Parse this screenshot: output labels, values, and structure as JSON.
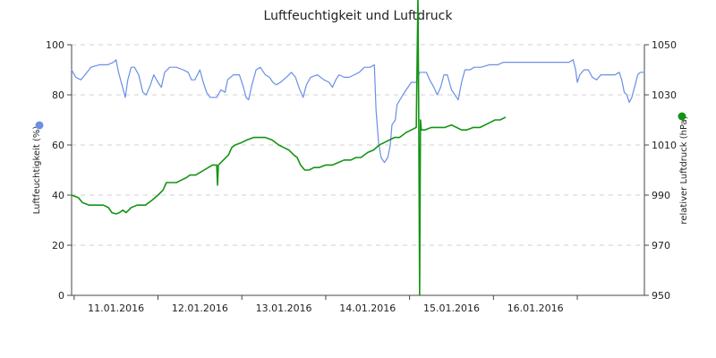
{
  "chart_data": {
    "type": "line",
    "title": "Luftfeuchtigkeit und Luftdruck",
    "y_left": {
      "label": "Luftfeuchtigkeit (%)",
      "ticks": [
        0,
        20,
        40,
        60,
        80,
        100
      ],
      "tick_labels": [
        "0",
        "20",
        "40",
        "60",
        "80",
        "100"
      ],
      "ylim": [
        0,
        100
      ],
      "legend_color": "#6a8fe6"
    },
    "y_right": {
      "label": "relativer Luftdruck (hPa)",
      "ticks": [
        950,
        970,
        990,
        1010,
        1030,
        1050
      ],
      "tick_labels": [
        "950",
        "970",
        "990",
        "1010",
        "1030",
        "1050"
      ],
      "ylim": [
        950,
        1050
      ],
      "legend_color": "#149414"
    },
    "x_axis": {
      "xlim": [
        10.47,
        17.3
      ],
      "day_ticks": [
        10.5,
        11.5,
        12.5,
        13.5,
        14.5,
        15.5,
        16.5
      ],
      "labels": [
        {
          "x": 11.0,
          "text": "11.01.2016"
        },
        {
          "x": 12.0,
          "text": "12.01.2016"
        },
        {
          "x": 13.0,
          "text": "13.01.2016"
        },
        {
          "x": 14.0,
          "text": "14.01.2016"
        },
        {
          "x": 15.0,
          "text": "15.01.2016"
        },
        {
          "x": 16.0,
          "text": "16.01.2016"
        }
      ]
    },
    "grid": true,
    "series": [
      {
        "color": "#6a8fe6",
        "axis": "left",
        "points": [
          [
            10.47,
            90
          ],
          [
            10.52,
            87
          ],
          [
            10.58,
            86
          ],
          [
            10.63,
            88
          ],
          [
            10.7,
            91
          ],
          [
            10.8,
            92
          ],
          [
            10.9,
            92
          ],
          [
            10.97,
            93
          ],
          [
            11.0,
            94
          ],
          [
            11.03,
            89
          ],
          [
            11.07,
            84
          ],
          [
            11.11,
            79
          ],
          [
            11.14,
            86
          ],
          [
            11.18,
            91
          ],
          [
            11.22,
            91
          ],
          [
            11.27,
            88
          ],
          [
            11.32,
            81
          ],
          [
            11.36,
            80
          ],
          [
            11.41,
            84
          ],
          [
            11.45,
            88
          ],
          [
            11.5,
            85
          ],
          [
            11.54,
            83
          ],
          [
            11.58,
            89
          ],
          [
            11.64,
            91
          ],
          [
            11.72,
            91
          ],
          [
            11.8,
            90
          ],
          [
            11.86,
            89
          ],
          [
            11.9,
            86
          ],
          [
            11.94,
            86
          ],
          [
            12.0,
            90
          ],
          [
            12.04,
            85
          ],
          [
            12.08,
            81
          ],
          [
            12.12,
            79
          ],
          [
            12.2,
            79
          ],
          [
            12.25,
            82
          ],
          [
            12.3,
            81
          ],
          [
            12.33,
            86
          ],
          [
            12.4,
            88
          ],
          [
            12.47,
            88
          ],
          [
            12.52,
            83
          ],
          [
            12.55,
            79
          ],
          [
            12.58,
            78
          ],
          [
            12.62,
            84
          ],
          [
            12.67,
            90
          ],
          [
            12.72,
            91
          ],
          [
            12.78,
            88
          ],
          [
            12.83,
            87
          ],
          [
            12.87,
            85
          ],
          [
            12.91,
            84
          ],
          [
            12.96,
            85
          ],
          [
            13.03,
            87
          ],
          [
            13.09,
            89
          ],
          [
            13.14,
            87
          ],
          [
            13.18,
            83
          ],
          [
            13.23,
            79
          ],
          [
            13.27,
            84
          ],
          [
            13.32,
            87
          ],
          [
            13.4,
            88
          ],
          [
            13.48,
            86
          ],
          [
            13.54,
            85
          ],
          [
            13.58,
            83
          ],
          [
            13.62,
            86
          ],
          [
            13.66,
            88
          ],
          [
            13.72,
            87
          ],
          [
            13.78,
            87
          ],
          [
            13.84,
            88
          ],
          [
            13.9,
            89
          ],
          [
            13.96,
            91
          ],
          [
            14.03,
            91
          ],
          [
            14.08,
            92
          ],
          [
            14.1,
            74
          ],
          [
            14.13,
            61
          ],
          [
            14.16,
            55
          ],
          [
            14.2,
            53
          ],
          [
            14.24,
            55
          ],
          [
            14.27,
            60
          ],
          [
            14.29,
            68
          ],
          [
            14.33,
            70
          ],
          [
            14.35,
            76
          ],
          [
            14.42,
            80
          ],
          [
            14.52,
            85
          ],
          [
            14.58,
            85
          ],
          [
            14.62,
            89
          ],
          [
            14.7,
            89
          ],
          [
            14.74,
            86
          ],
          [
            14.79,
            83
          ],
          [
            14.83,
            80
          ],
          [
            14.87,
            83
          ],
          [
            14.91,
            88
          ],
          [
            14.95,
            88
          ],
          [
            15.0,
            82
          ],
          [
            15.04,
            80
          ],
          [
            15.08,
            78
          ],
          [
            15.12,
            85
          ],
          [
            15.16,
            90
          ],
          [
            15.22,
            90
          ],
          [
            15.27,
            91
          ],
          [
            15.35,
            91
          ],
          [
            15.45,
            92
          ],
          [
            15.55,
            92
          ],
          [
            15.62,
            93
          ],
          [
            15.8,
            93
          ],
          [
            16.0,
            93
          ],
          [
            16.25,
            93
          ],
          [
            16.4,
            93
          ],
          [
            16.45,
            94
          ],
          [
            16.48,
            90
          ],
          [
            16.5,
            85
          ],
          [
            16.53,
            88
          ],
          [
            16.58,
            90
          ],
          [
            16.63,
            90
          ],
          [
            16.68,
            87
          ],
          [
            16.73,
            86
          ],
          [
            16.78,
            88
          ],
          [
            16.85,
            88
          ],
          [
            16.95,
            88
          ],
          [
            17.0,
            89
          ],
          [
            17.03,
            86
          ],
          [
            17.06,
            81
          ],
          [
            17.09,
            80
          ],
          [
            17.12,
            77
          ],
          [
            17.15,
            79
          ],
          [
            17.19,
            84
          ],
          [
            17.22,
            88
          ],
          [
            17.25,
            89
          ],
          [
            17.3,
            89
          ]
        ]
      },
      {
        "color": "#149414",
        "axis": "right",
        "points": [
          [
            10.47,
            990
          ],
          [
            10.55,
            989
          ],
          [
            10.6,
            987
          ],
          [
            10.68,
            986
          ],
          [
            10.78,
            986
          ],
          [
            10.85,
            986
          ],
          [
            10.91,
            985
          ],
          [
            10.95,
            983
          ],
          [
            11.0,
            982.5
          ],
          [
            11.04,
            983
          ],
          [
            11.08,
            984
          ],
          [
            11.12,
            983
          ],
          [
            11.18,
            985
          ],
          [
            11.25,
            986
          ],
          [
            11.35,
            986
          ],
          [
            11.43,
            988
          ],
          [
            11.5,
            990
          ],
          [
            11.56,
            992
          ],
          [
            11.6,
            995
          ],
          [
            11.65,
            995
          ],
          [
            11.72,
            995
          ],
          [
            11.78,
            996
          ],
          [
            11.84,
            997
          ],
          [
            11.88,
            998
          ],
          [
            11.95,
            998
          ],
          [
            12.05,
            1000
          ],
          [
            12.1,
            1001
          ],
          [
            12.15,
            1002
          ],
          [
            12.2,
            1002
          ],
          [
            12.21,
            994
          ],
          [
            12.22,
            1002
          ],
          [
            12.28,
            1004
          ],
          [
            12.34,
            1006
          ],
          [
            12.38,
            1009
          ],
          [
            12.42,
            1010
          ],
          [
            12.5,
            1011
          ],
          [
            12.56,
            1012
          ],
          [
            12.64,
            1013
          ],
          [
            12.7,
            1013
          ],
          [
            12.78,
            1013
          ],
          [
            12.86,
            1012
          ],
          [
            12.94,
            1010
          ],
          [
            13.0,
            1009
          ],
          [
            13.06,
            1008
          ],
          [
            13.12,
            1006
          ],
          [
            13.16,
            1005
          ],
          [
            13.2,
            1002
          ],
          [
            13.25,
            1000
          ],
          [
            13.3,
            1000
          ],
          [
            13.36,
            1001
          ],
          [
            13.42,
            1001
          ],
          [
            13.5,
            1002
          ],
          [
            13.58,
            1002
          ],
          [
            13.65,
            1003
          ],
          [
            13.72,
            1004
          ],
          [
            13.8,
            1004
          ],
          [
            13.86,
            1005
          ],
          [
            13.92,
            1005
          ],
          [
            14.0,
            1007
          ],
          [
            14.07,
            1008
          ],
          [
            14.14,
            1010
          ],
          [
            14.2,
            1011
          ],
          [
            14.26,
            1012
          ],
          [
            14.32,
            1013
          ],
          [
            14.38,
            1013
          ],
          [
            14.46,
            1015
          ],
          [
            14.52,
            1016
          ],
          [
            14.58,
            1017
          ],
          [
            14.6,
            1070
          ],
          [
            14.61,
            1016
          ],
          [
            14.62,
            950
          ],
          [
            14.63,
            1020
          ],
          [
            14.64,
            1016
          ],
          [
            14.68,
            1016
          ],
          [
            14.76,
            1017
          ],
          [
            14.84,
            1017
          ],
          [
            14.92,
            1017
          ],
          [
            15.0,
            1018
          ],
          [
            15.06,
            1017
          ],
          [
            15.12,
            1016
          ],
          [
            15.18,
            1016
          ],
          [
            15.26,
            1017
          ],
          [
            15.34,
            1017
          ],
          [
            15.4,
            1018
          ],
          [
            15.46,
            1019
          ],
          [
            15.52,
            1020
          ],
          [
            15.58,
            1020
          ],
          [
            15.64,
            1021
          ]
        ]
      }
    ]
  }
}
